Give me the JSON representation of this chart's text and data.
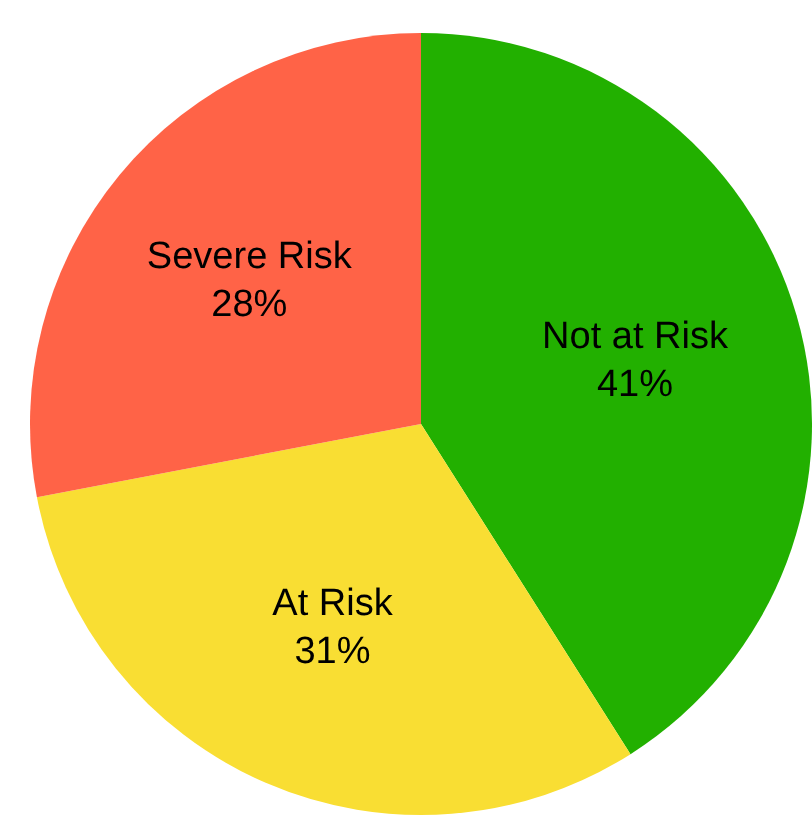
{
  "chart_data": {
    "type": "pie",
    "categories": [
      "Not at Risk",
      "At Risk",
      "Severe Risk"
    ],
    "values": [
      41,
      31,
      28
    ],
    "colors": [
      "#22b000",
      "#f9de33",
      "#ff6347"
    ],
    "value_labels": [
      "41%",
      "31%",
      "28%"
    ],
    "legend": false
  }
}
